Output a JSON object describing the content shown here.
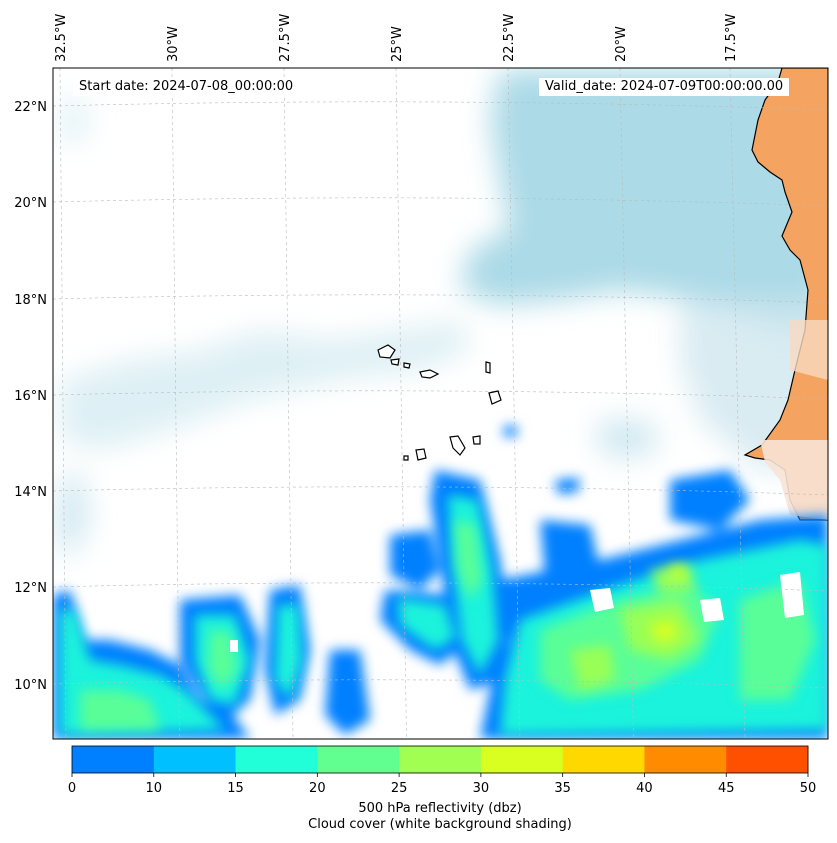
{
  "map": {
    "start_date": "Start date: 2024-07-08_00:00:00",
    "valid_date": "Valid_date: 2024-07-09T00:00:00.00",
    "lon_labels": [
      "32.5°W",
      "30°W",
      "27.5°W",
      "25°W",
      "22.5°W",
      "20°W",
      "17.5°W"
    ],
    "lat_labels": [
      "22°N",
      "20°N",
      "18°N",
      "16°N",
      "14°N",
      "12°N",
      "10°N"
    ],
    "extent": {
      "lon_min": -32.8,
      "lon_max": -15.8,
      "lat_min": 8.9,
      "lat_max": 22.8
    },
    "gridlines": true
  },
  "colorbar": {
    "ticks": [
      "0",
      "10",
      "15",
      "20",
      "25",
      "30",
      "35",
      "40",
      "45",
      "50"
    ],
    "colors": [
      "#0080ff",
      "#00c0ff",
      "#20ffd8",
      "#60ff90",
      "#a0ff50",
      "#d8ff20",
      "#ffd800",
      "#ff8c00",
      "#ff5000"
    ],
    "title_line1": "500 hPa reflectivity (dbz)",
    "title_line2": "Cloud cover (white background shading)"
  },
  "colors": {
    "land": "#f4a460",
    "cloud": "#a8d8e6",
    "coast": "#000000"
  }
}
